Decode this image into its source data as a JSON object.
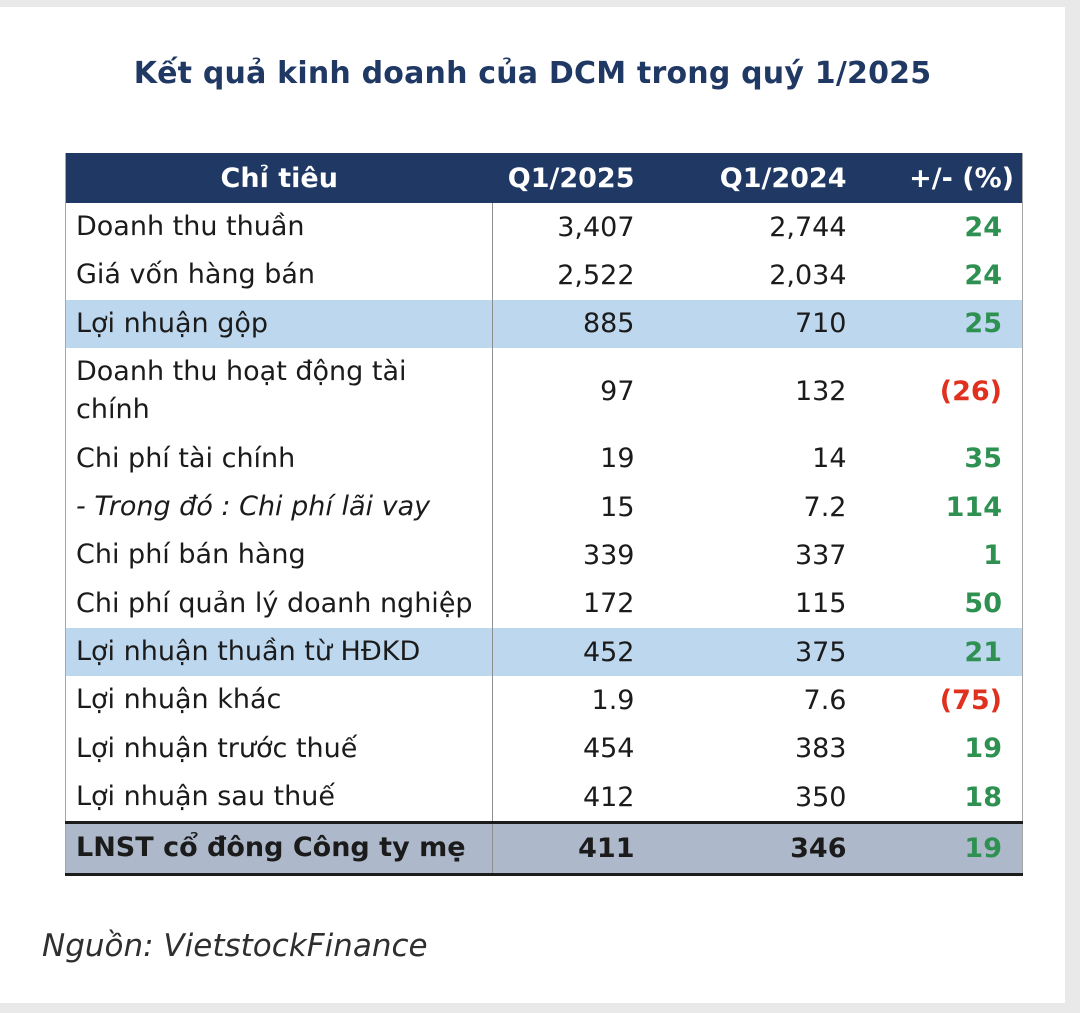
{
  "page": {
    "title": "Kết quả kinh doanh của DCM trong quý 1/2025",
    "source_note": "Nguồn: VietstockFinance"
  },
  "table": {
    "headers": [
      "Chỉ tiêu",
      "Q1/2025",
      "Q1/2024",
      "+/- (%)"
    ],
    "rows": [
      {
        "label": "Doanh thu thuần",
        "q1_2025": "3,407",
        "q1_2024": "2,744",
        "change": "24",
        "trend": "positive",
        "emphasis": "normal"
      },
      {
        "label": "Giá vốn hàng bán",
        "q1_2025": "2,522",
        "q1_2024": "2,034",
        "change": "24",
        "trend": "positive",
        "emphasis": "normal"
      },
      {
        "label": "Lợi nhuận gộp",
        "q1_2025": "885",
        "q1_2024": "710",
        "change": "25",
        "trend": "positive",
        "emphasis": "highlight"
      },
      {
        "label": "Doanh thu hoạt động tài chính",
        "q1_2025": "97",
        "q1_2024": "132",
        "change": "(26)",
        "trend": "negative",
        "emphasis": "normal"
      },
      {
        "label": "Chi phí tài chính",
        "q1_2025": "19",
        "q1_2024": "14",
        "change": "35",
        "trend": "positive",
        "emphasis": "normal"
      },
      {
        "label": "- Trong đó : Chi phí lãi vay",
        "q1_2025": "15",
        "q1_2024": "7.2",
        "change": "114",
        "trend": "positive",
        "emphasis": "italic"
      },
      {
        "label": "Chi phí bán hàng",
        "q1_2025": "339",
        "q1_2024": "337",
        "change": "1",
        "trend": "positive",
        "emphasis": "normal"
      },
      {
        "label": "Chi phí quản lý doanh nghiệp",
        "q1_2025": "172",
        "q1_2024": "115",
        "change": "50",
        "trend": "positive",
        "emphasis": "normal"
      },
      {
        "label": "Lợi nhuận thuần từ HĐKD",
        "q1_2025": "452",
        "q1_2024": "375",
        "change": "21",
        "trend": "positive",
        "emphasis": "highlight"
      },
      {
        "label": "Lợi nhuận khác",
        "q1_2025": "1.9",
        "q1_2024": "7.6",
        "change": "(75)",
        "trend": "negative",
        "emphasis": "normal"
      },
      {
        "label": "Lợi nhuận trước thuế",
        "q1_2025": "454",
        "q1_2024": "383",
        "change": "19",
        "trend": "positive",
        "emphasis": "normal"
      },
      {
        "label": "Lợi nhuận sau thuế",
        "q1_2025": "412",
        "q1_2024": "350",
        "change": "18",
        "trend": "positive",
        "emphasis": "normal"
      },
      {
        "label": "LNST cổ đông Công ty mẹ",
        "q1_2025": "411",
        "q1_2024": "346",
        "change": "19",
        "trend": "positive",
        "emphasis": "total"
      }
    ]
  },
  "colors": {
    "title": "#203864",
    "header_bg": "#1f3864",
    "header_text": "#ffffff",
    "highlight_bg": "#bdd7ee",
    "total_bg": "#adb9ca",
    "positive": "#2e9152",
    "negative": "#e0301e"
  }
}
